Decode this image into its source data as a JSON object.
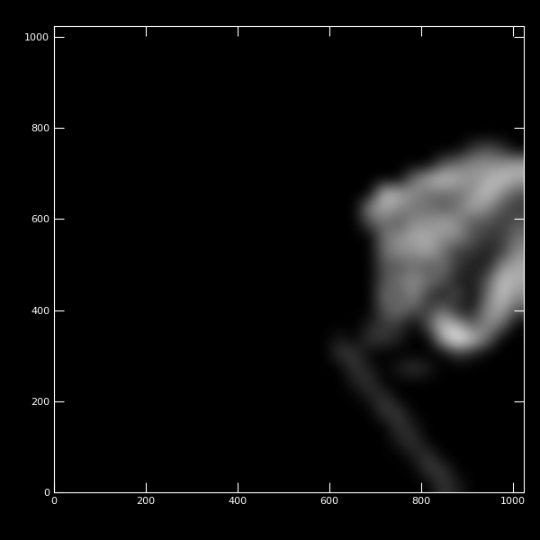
{
  "chart_data": {
    "type": "heatmap",
    "xlim": [
      0,
      1024
    ],
    "ylim": [
      0,
      1024
    ],
    "xticks": [
      0,
      200,
      400,
      600,
      800,
      1000
    ],
    "yticks": [
      0,
      200,
      400,
      600,
      800,
      1000
    ],
    "zlim": [
      0,
      9
    ],
    "cells": [
      [
        0,
        0,
        0,
        0,
        0,
        0,
        0,
        0,
        0,
        0,
        0,
        0,
        0,
        0,
        0,
        0,
        0,
        0,
        0,
        0,
        0,
        0,
        0,
        0,
        0,
        0,
        2,
        1,
        0,
        0,
        0,
        0
      ],
      [
        0,
        0,
        0,
        0,
        0,
        0,
        0,
        0,
        0,
        0,
        0,
        0,
        0,
        0,
        0,
        0,
        0,
        0,
        0,
        0,
        0,
        0,
        0,
        0,
        0,
        2,
        2,
        0,
        0,
        0,
        0,
        0
      ],
      [
        0,
        0,
        0,
        0,
        0,
        0,
        0,
        0,
        0,
        0,
        0,
        0,
        0,
        0,
        0,
        0,
        0,
        0,
        0,
        0,
        0,
        0,
        0,
        0,
        1,
        2,
        0,
        0,
        0,
        0,
        0,
        0
      ],
      [
        0,
        0,
        0,
        0,
        0,
        0,
        0,
        0,
        0,
        0,
        0,
        0,
        0,
        0,
        0,
        0,
        0,
        0,
        0,
        0,
        0,
        0,
        0,
        1,
        2,
        0,
        0,
        0,
        0,
        0,
        0,
        0
      ],
      [
        0,
        0,
        0,
        0,
        0,
        0,
        0,
        0,
        0,
        0,
        0,
        0,
        0,
        0,
        0,
        0,
        0,
        0,
        0,
        0,
        0,
        0,
        0,
        2,
        1,
        0,
        0,
        0,
        0,
        0,
        0,
        0
      ],
      [
        0,
        0,
        0,
        0,
        0,
        0,
        0,
        0,
        0,
        0,
        0,
        0,
        0,
        0,
        0,
        0,
        0,
        0,
        0,
        0,
        0,
        0,
        2,
        2,
        0,
        0,
        0,
        0,
        0,
        0,
        0,
        0
      ],
      [
        0,
        0,
        0,
        0,
        0,
        0,
        0,
        0,
        0,
        0,
        0,
        0,
        0,
        0,
        0,
        0,
        0,
        0,
        0,
        0,
        0,
        1,
        2,
        0,
        0,
        0,
        0,
        0,
        0,
        0,
        0,
        0
      ],
      [
        0,
        0,
        0,
        0,
        0,
        0,
        0,
        0,
        0,
        0,
        0,
        0,
        0,
        0,
        0,
        0,
        0,
        0,
        0,
        0,
        1,
        2,
        0,
        0,
        0,
        0,
        0,
        0,
        0,
        0,
        0,
        0
      ],
      [
        0,
        0,
        0,
        0,
        0,
        0,
        0,
        0,
        0,
        0,
        0,
        0,
        0,
        0,
        0,
        0,
        0,
        0,
        0,
        0,
        2,
        1,
        0,
        1,
        2,
        1,
        0,
        0,
        0,
        0,
        0,
        0
      ],
      [
        0,
        0,
        0,
        0,
        0,
        0,
        0,
        0,
        0,
        0,
        0,
        0,
        0,
        0,
        0,
        0,
        0,
        0,
        0,
        2,
        2,
        0,
        0,
        0,
        0,
        0,
        0,
        2,
        1,
        0,
        0,
        0
      ],
      [
        0,
        0,
        0,
        0,
        0,
        0,
        0,
        0,
        0,
        0,
        0,
        0,
        0,
        0,
        0,
        0,
        0,
        0,
        0,
        1,
        0,
        2,
        2,
        1,
        0,
        0,
        6,
        9,
        7,
        4,
        0,
        0
      ],
      [
        0,
        0,
        0,
        0,
        0,
        0,
        0,
        0,
        0,
        0,
        0,
        0,
        0,
        0,
        0,
        0,
        0,
        0,
        0,
        0,
        0,
        1,
        2,
        2,
        0,
        3,
        7,
        6,
        3,
        5,
        4,
        0
      ],
      [
        0,
        0,
        0,
        0,
        0,
        0,
        0,
        0,
        0,
        0,
        0,
        0,
        0,
        0,
        0,
        0,
        0,
        0,
        0,
        0,
        0,
        0,
        3,
        4,
        3,
        2,
        4,
        1,
        1,
        5,
        6,
        3
      ],
      [
        0,
        0,
        0,
        0,
        0,
        0,
        0,
        0,
        0,
        0,
        0,
        0,
        0,
        0,
        0,
        0,
        0,
        0,
        0,
        0,
        0,
        0,
        4,
        3,
        5,
        2,
        1,
        3,
        0,
        4,
        7,
        5
      ],
      [
        0,
        0,
        0,
        0,
        0,
        0,
        0,
        0,
        0,
        0,
        0,
        0,
        0,
        0,
        0,
        0,
        0,
        0,
        0,
        0,
        0,
        0,
        3,
        4,
        5,
        4,
        3,
        1,
        1,
        3,
        7,
        6
      ],
      [
        0,
        0,
        0,
        0,
        0,
        0,
        0,
        0,
        0,
        0,
        0,
        0,
        0,
        0,
        0,
        0,
        0,
        0,
        0,
        0,
        0,
        0,
        3,
        3,
        4,
        3,
        4,
        2,
        1,
        1,
        5,
        6
      ],
      [
        0,
        0,
        0,
        0,
        0,
        0,
        0,
        0,
        0,
        0,
        0,
        0,
        0,
        0,
        0,
        0,
        0,
        0,
        0,
        0,
        0,
        0,
        4,
        5,
        5,
        6,
        4,
        2,
        2,
        1,
        2,
        5
      ],
      [
        0,
        0,
        0,
        0,
        0,
        0,
        0,
        0,
        0,
        0,
        0,
        0,
        0,
        0,
        0,
        0,
        0,
        0,
        0,
        0,
        0,
        0,
        4,
        5,
        6,
        6,
        5,
        5,
        3,
        2,
        2,
        4
      ],
      [
        0,
        0,
        0,
        0,
        0,
        0,
        0,
        0,
        0,
        0,
        0,
        0,
        0,
        0,
        0,
        0,
        0,
        0,
        0,
        0,
        0,
        3,
        4,
        3,
        5,
        5,
        6,
        5,
        3,
        3,
        2,
        3
      ],
      [
        0,
        0,
        0,
        0,
        0,
        0,
        0,
        0,
        0,
        0,
        0,
        0,
        0,
        0,
        0,
        0,
        0,
        0,
        0,
        0,
        0,
        5,
        6,
        5,
        4,
        4,
        3,
        4,
        6,
        5,
        3,
        2
      ],
      [
        0,
        0,
        0,
        0,
        0,
        0,
        0,
        0,
        0,
        0,
        0,
        0,
        0,
        0,
        0,
        0,
        0,
        0,
        0,
        0,
        0,
        0,
        7,
        6,
        5,
        4,
        4,
        4,
        5,
        7,
        5,
        3
      ],
      [
        0,
        0,
        0,
        0,
        0,
        0,
        0,
        0,
        0,
        0,
        0,
        0,
        0,
        0,
        0,
        0,
        0,
        0,
        0,
        0,
        0,
        0,
        0,
        0,
        4,
        6,
        7,
        6,
        5,
        6,
        7,
        6
      ],
      [
        0,
        0,
        0,
        0,
        0,
        0,
        0,
        0,
        0,
        0,
        0,
        0,
        0,
        0,
        0,
        0,
        0,
        0,
        0,
        0,
        0,
        0,
        0,
        0,
        0,
        0,
        3,
        4,
        5,
        5,
        5,
        6
      ],
      [
        0,
        0,
        0,
        0,
        0,
        0,
        0,
        0,
        0,
        0,
        0,
        0,
        0,
        0,
        0,
        0,
        0,
        0,
        0,
        0,
        0,
        0,
        0,
        0,
        0,
        0,
        0,
        0,
        2,
        3,
        2,
        0
      ],
      [
        0,
        0,
        0,
        0,
        0,
        0,
        0,
        0,
        0,
        0,
        0,
        0,
        0,
        0,
        0,
        0,
        0,
        0,
        0,
        0,
        0,
        0,
        0,
        0,
        0,
        0,
        0,
        0,
        0,
        0,
        0,
        0
      ],
      [
        0,
        0,
        0,
        0,
        0,
        0,
        0,
        0,
        0,
        0,
        0,
        0,
        0,
        0,
        0,
        0,
        0,
        0,
        0,
        0,
        0,
        0,
        0,
        0,
        0,
        0,
        0,
        0,
        0,
        0,
        0,
        0
      ],
      [
        0,
        0,
        0,
        0,
        0,
        0,
        0,
        0,
        0,
        0,
        0,
        0,
        0,
        0,
        0,
        0,
        0,
        0,
        0,
        0,
        0,
        0,
        0,
        0,
        0,
        0,
        0,
        0,
        0,
        0,
        0,
        0
      ],
      [
        0,
        0,
        0,
        0,
        0,
        0,
        0,
        0,
        0,
        0,
        0,
        0,
        0,
        0,
        0,
        0,
        0,
        0,
        0,
        0,
        0,
        0,
        0,
        0,
        0,
        0,
        0,
        0,
        0,
        0,
        0,
        0
      ],
      [
        0,
        0,
        0,
        0,
        0,
        0,
        0,
        0,
        0,
        0,
        0,
        0,
        0,
        0,
        0,
        0,
        0,
        0,
        0,
        0,
        0,
        0,
        0,
        0,
        0,
        0,
        0,
        0,
        0,
        0,
        0,
        0
      ],
      [
        0,
        0,
        0,
        0,
        0,
        0,
        0,
        0,
        0,
        0,
        0,
        0,
        0,
        0,
        0,
        0,
        0,
        0,
        0,
        0,
        0,
        0,
        0,
        0,
        0,
        0,
        0,
        0,
        0,
        0,
        0,
        0
      ],
      [
        0,
        0,
        0,
        0,
        0,
        0,
        0,
        0,
        0,
        0,
        0,
        0,
        0,
        0,
        0,
        0,
        0,
        0,
        0,
        0,
        0,
        0,
        0,
        0,
        0,
        0,
        0,
        0,
        0,
        0,
        0,
        0
      ],
      [
        0,
        0,
        0,
        0,
        0,
        0,
        0,
        0,
        0,
        0,
        0,
        0,
        0,
        0,
        0,
        0,
        0,
        0,
        0,
        0,
        0,
        0,
        0,
        0,
        0,
        0,
        0,
        0,
        0,
        0,
        0,
        0
      ]
    ]
  }
}
